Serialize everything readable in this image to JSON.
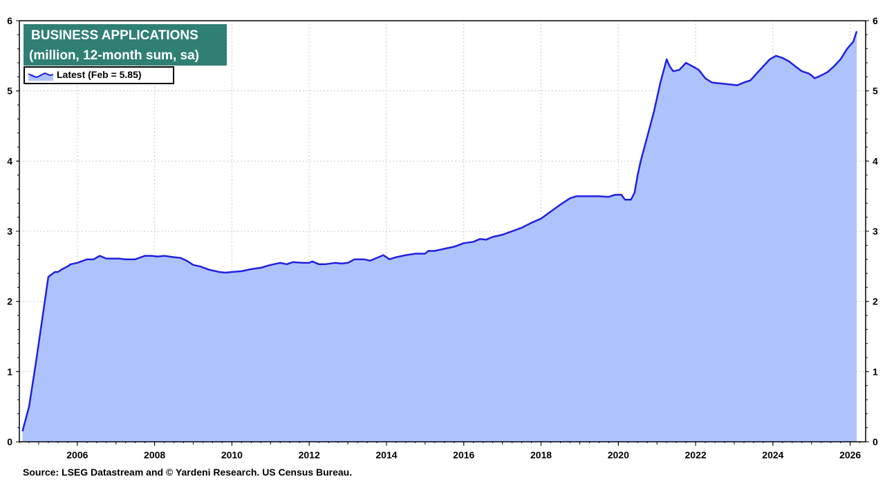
{
  "chart_data": {
    "type": "area",
    "title": "BUSINESS APPLICATIONS",
    "subtitle": "(million, 12-month sum, sa)",
    "legend": {
      "label": "Latest (Feb = 5.85)",
      "placement": "top-left"
    },
    "source": "Source: LSEG Datastream and © Yardeni Research. US Census Bureau.",
    "x_ticks": [
      "2006",
      "2008",
      "2010",
      "2012",
      "2014",
      "2016",
      "2018",
      "2020",
      "2022",
      "2024",
      "2026"
    ],
    "y_ticks": [
      "0",
      "1",
      "2",
      "3",
      "4",
      "5",
      "6"
    ],
    "xlim": [
      2004.5,
      2026.4
    ],
    "ylim": [
      0,
      6
    ],
    "grid": true,
    "colors": {
      "line": "#1f1fe0",
      "fill": "#aec3fb",
      "title_bg": "#2f7f74"
    },
    "series": [
      {
        "x": [
          2004.58,
          2004.75,
          2004.92,
          2005.08,
          2005.25,
          2005.42,
          2005.5,
          2005.58,
          2005.75,
          2005.83,
          2006.0,
          2006.25,
          2006.42,
          2006.58,
          2006.75,
          2006.92,
          2007.08,
          2007.25,
          2007.5,
          2007.75,
          2007.92,
          2008.08,
          2008.25,
          2008.5,
          2008.67,
          2008.83,
          2009.0,
          2009.17,
          2009.42,
          2009.67,
          2009.83,
          2010.0,
          2010.25,
          2010.5,
          2010.75,
          2011.0,
          2011.25,
          2011.42,
          2011.58,
          2011.83,
          2012.0,
          2012.08,
          2012.25,
          2012.42,
          2012.67,
          2012.83,
          2013.0,
          2013.17,
          2013.42,
          2013.58,
          2013.75,
          2013.92,
          2014.08,
          2014.25,
          2014.5,
          2014.75,
          2015.0,
          2015.08,
          2015.25,
          2015.5,
          2015.75,
          2016.0,
          2016.25,
          2016.42,
          2016.58,
          2016.75,
          2017.0,
          2017.25,
          2017.5,
          2017.75,
          2018.0,
          2018.25,
          2018.5,
          2018.75,
          2018.92,
          2019.08,
          2019.25,
          2019.5,
          2019.75,
          2019.92,
          2020.08,
          2020.17,
          2020.33,
          2020.42,
          2020.5,
          2020.58,
          2020.75,
          2020.92,
          2021.08,
          2021.25,
          2021.33,
          2021.42,
          2021.58,
          2021.75,
          2021.92,
          2022.08,
          2022.25,
          2022.42,
          2022.58,
          2022.75,
          2022.92,
          2023.08,
          2023.25,
          2023.42,
          2023.58,
          2023.75,
          2023.92,
          2024.08,
          2024.25,
          2024.42,
          2024.58,
          2024.75,
          2024.92,
          2025.0,
          2025.08,
          2025.25,
          2025.42,
          2025.58,
          2025.75,
          2025.92,
          2026.08,
          2026.17
        ],
        "values": [
          0.15,
          0.5,
          1.1,
          1.7,
          2.35,
          2.42,
          2.42,
          2.45,
          2.5,
          2.53,
          2.55,
          2.6,
          2.6,
          2.65,
          2.61,
          2.61,
          2.61,
          2.6,
          2.6,
          2.65,
          2.65,
          2.64,
          2.65,
          2.63,
          2.62,
          2.58,
          2.52,
          2.5,
          2.45,
          2.42,
          2.41,
          2.42,
          2.43,
          2.46,
          2.48,
          2.52,
          2.55,
          2.53,
          2.56,
          2.55,
          2.55,
          2.57,
          2.53,
          2.53,
          2.55,
          2.54,
          2.55,
          2.6,
          2.6,
          2.58,
          2.62,
          2.66,
          2.6,
          2.63,
          2.66,
          2.68,
          2.68,
          2.72,
          2.72,
          2.75,
          2.78,
          2.83,
          2.85,
          2.89,
          2.88,
          2.92,
          2.95,
          3.0,
          3.05,
          3.12,
          3.18,
          3.28,
          3.38,
          3.47,
          3.5,
          3.5,
          3.5,
          3.5,
          3.49,
          3.52,
          3.52,
          3.45,
          3.45,
          3.55,
          3.8,
          4.0,
          4.35,
          4.7,
          5.1,
          5.45,
          5.35,
          5.28,
          5.3,
          5.4,
          5.35,
          5.3,
          5.18,
          5.12,
          5.11,
          5.1,
          5.09,
          5.08,
          5.12,
          5.15,
          5.25,
          5.35,
          5.45,
          5.5,
          5.47,
          5.42,
          5.35,
          5.28,
          5.25,
          5.22,
          5.18,
          5.22,
          5.27,
          5.35,
          5.45,
          5.6,
          5.7,
          5.85
        ]
      }
    ]
  }
}
